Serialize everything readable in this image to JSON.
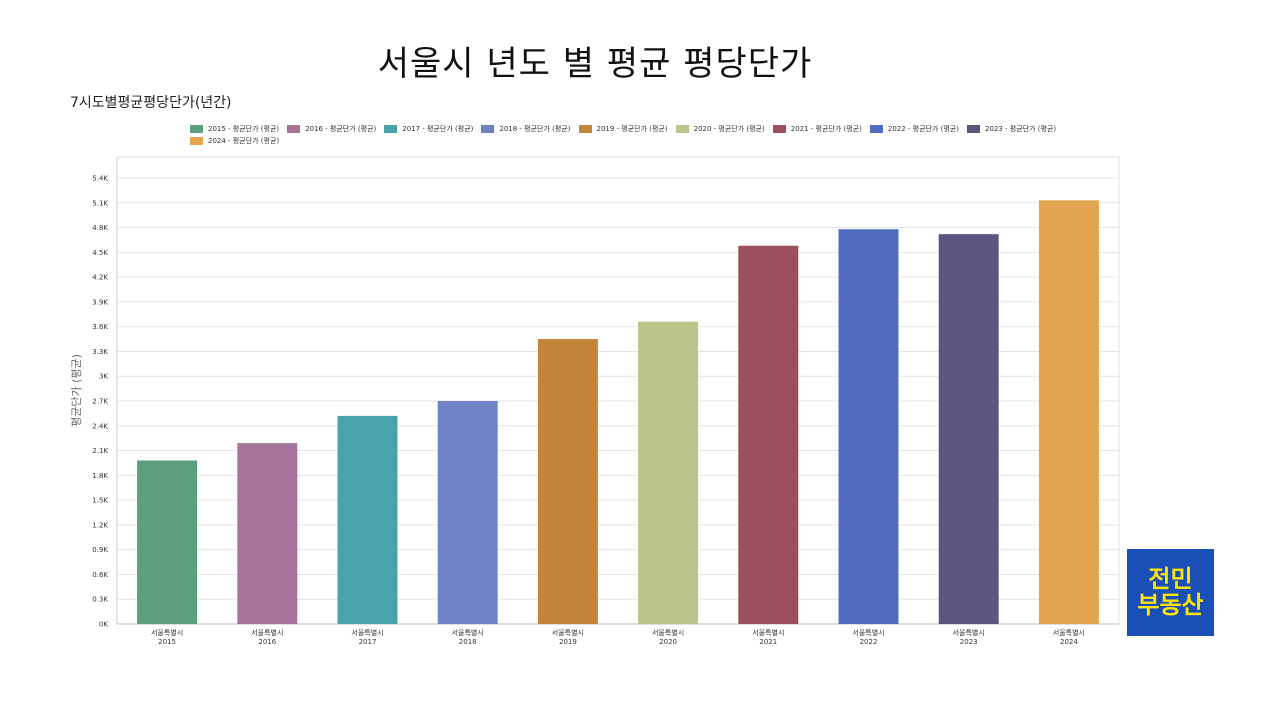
{
  "slide": {
    "title": "서울시 년도 별 평균 평당단가",
    "subtitle": "7시도별평균평당단가(년간)"
  },
  "logo": {
    "line1": "전민",
    "line2": "부동산",
    "bg_color": "#1b4fb8",
    "text_color": "#ffe600"
  },
  "chart_data": {
    "type": "bar",
    "title": "",
    "ylabel": "평균단가 (평균)",
    "xlabel": "",
    "ylim": [
      0,
      5.4
    ],
    "y_unit": "K",
    "y_ticks": [
      "0K",
      "0.3K",
      "0.6K",
      "0.9K",
      "1.2K",
      "1.5K",
      "1.8K",
      "2.1K",
      "2.4K",
      "2.7K",
      "3K",
      "3.3K",
      "3.6K",
      "3.9K",
      "4.2K",
      "4.5K",
      "4.8K",
      "5.1K",
      "5.4K"
    ],
    "grid": true,
    "legend_position": "top",
    "categories": [
      {
        "region": "서울특별시",
        "year": "2015"
      },
      {
        "region": "서울특별시",
        "year": "2016"
      },
      {
        "region": "서울특별시",
        "year": "2017"
      },
      {
        "region": "서울특별시",
        "year": "2018"
      },
      {
        "region": "서울특별시",
        "year": "2019"
      },
      {
        "region": "서울특별시",
        "year": "2020"
      },
      {
        "region": "서울특별시",
        "year": "2021"
      },
      {
        "region": "서울특별시",
        "year": "2022"
      },
      {
        "region": "서울특별시",
        "year": "2023"
      },
      {
        "region": "서울특별시",
        "year": "2024"
      }
    ],
    "values": [
      1.98,
      2.19,
      2.52,
      2.7,
      3.45,
      3.66,
      4.58,
      4.78,
      4.72,
      5.13
    ],
    "legend": [
      {
        "label": "2015 - 평균단가 (평균)",
        "color": "#5c9e7e"
      },
      {
        "label": "2016 - 평균단가 (평균)",
        "color": "#a77599"
      },
      {
        "label": "2017 - 평균단가 (평균)",
        "color": "#4aa2ab"
      },
      {
        "label": "2018 - 평균단가 (평균)",
        "color": "#7182c6"
      },
      {
        "label": "2019 - 평균단가 (평균)",
        "color": "#c2853b"
      },
      {
        "label": "2020 - 평균단가 (평균)",
        "color": "#bbc489"
      },
      {
        "label": "2021 - 평균단가 (평균)",
        "color": "#9c505f"
      },
      {
        "label": "2022 - 평균단가 (평균)",
        "color": "#526cc0"
      },
      {
        "label": "2023 - 평균단가 (평균)",
        "color": "#5c567e"
      },
      {
        "label": "2024 - 평균단가 (평균)",
        "color": "#e3a650"
      }
    ]
  }
}
